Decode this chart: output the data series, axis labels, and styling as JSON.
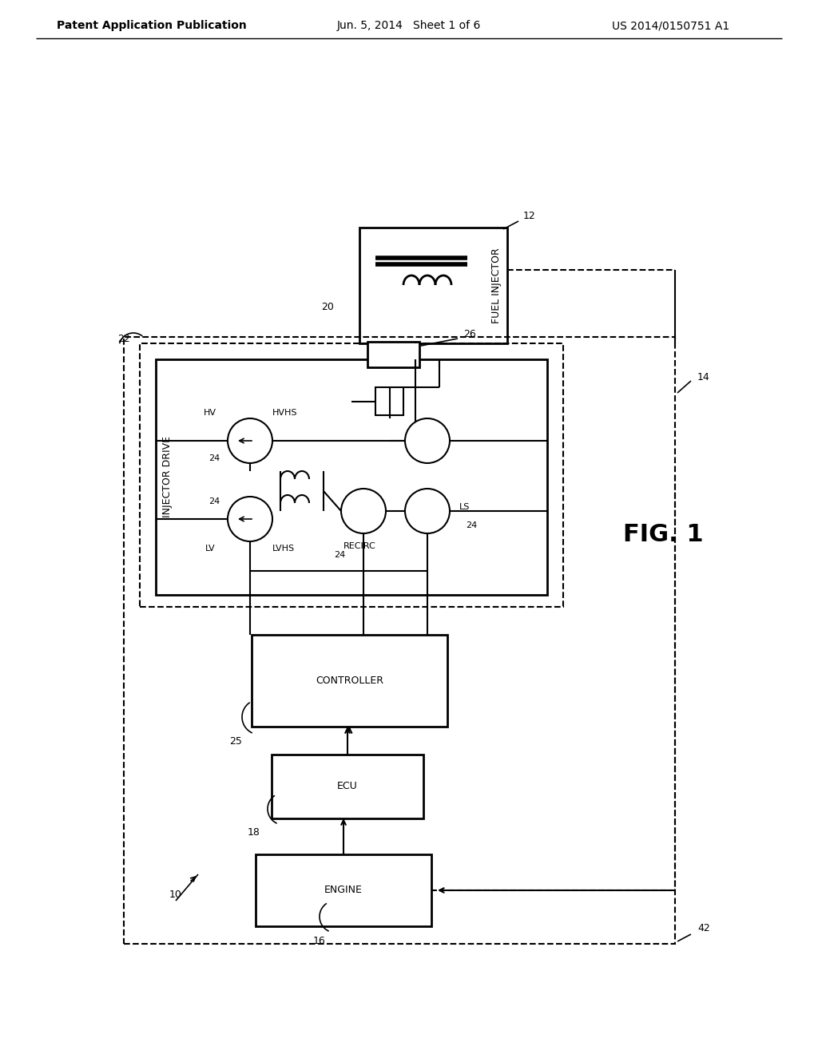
{
  "bg_color": "#ffffff",
  "header_left": "Patent Application Publication",
  "header_mid": "Jun. 5, 2014   Sheet 1 of 6",
  "header_right": "US 2014/0150751 A1",
  "fig_label": "FIG. 1"
}
